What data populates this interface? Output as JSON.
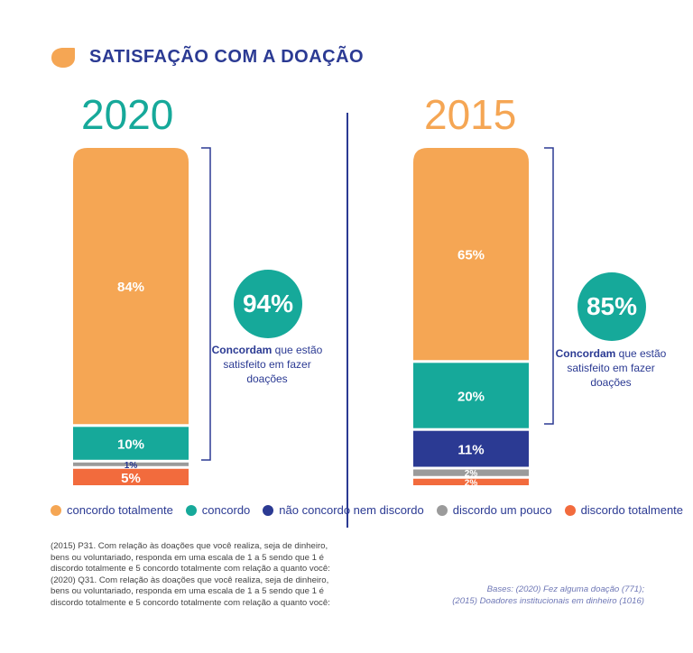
{
  "header": {
    "title": "SATISFAÇÃO COM A DOAÇÃO",
    "title_color": "#2b3a93",
    "dot_color": "#f5a654"
  },
  "colors": {
    "concordo_totalmente": "#f5a654",
    "concordo": "#16a99a",
    "nao_concordo_nem_discordo": "#2b3a93",
    "discordo_um_pouco": "#9b9b9b",
    "discordo_totalmente": "#f26b3d"
  },
  "chart_data": [
    {
      "type": "bar",
      "stacked": true,
      "title": "2020",
      "categories": [
        "2020"
      ],
      "series": [
        {
          "name": "concordo totalmente",
          "values": [
            84
          ],
          "label": "84%"
        },
        {
          "name": "concordo",
          "values": [
            10
          ],
          "label": "10%"
        },
        {
          "name": "não concordo nem discordo",
          "values": [
            0
          ],
          "label": ""
        },
        {
          "name": "discordo um pouco",
          "values": [
            1
          ],
          "label": "1%"
        },
        {
          "name": "discordo totalmente",
          "values": [
            5
          ],
          "label": "5%"
        }
      ],
      "summary": {
        "value": "94%",
        "caption_bold": "Concordam",
        "caption_rest": " que estão satisfeito em fazer doações"
      }
    },
    {
      "type": "bar",
      "stacked": true,
      "title": "2015",
      "categories": [
        "2015"
      ],
      "series": [
        {
          "name": "concordo totalmente",
          "values": [
            65
          ],
          "label": "65%"
        },
        {
          "name": "concordo",
          "values": [
            20
          ],
          "label": "20%"
        },
        {
          "name": "não concordo nem discordo",
          "values": [
            11
          ],
          "label": "11%"
        },
        {
          "name": "discordo um pouco",
          "values": [
            2
          ],
          "label": "2%"
        },
        {
          "name": "discordo totalmente",
          "values": [
            2
          ],
          "label": "2%"
        }
      ],
      "summary": {
        "value": "85%",
        "caption_bold": "Concordam",
        "caption_rest": " que estão satisfeito em fazer doações"
      }
    }
  ],
  "legend": [
    {
      "label": "concordo totalmente",
      "color": "#f5a654"
    },
    {
      "label": "concordo",
      "color": "#16a99a"
    },
    {
      "label": "não concordo nem discordo",
      "color": "#2b3a93"
    },
    {
      "label": "discordo um pouco",
      "color": "#9b9b9b"
    },
    {
      "label": "discordo totalmente",
      "color": "#f26b3d"
    }
  ],
  "note_lines": [
    "(2015) P31. Com relação às doações que você realiza, seja de dinheiro,",
    "bens ou voluntariado, responda em uma escala de 1 a 5 sendo que 1 é",
    "discordo totalmente e 5 concordo totalmente com relação a quanto você:",
    "(2020) Q31. Com relação às doações que você realiza, seja de dinheiro,",
    "bens ou voluntariado, responda em uma escala de 1 a 5 sendo que 1 é",
    "discordo totalmente e 5 concordo totalmente com relação a quanto você:"
  ],
  "bases_lines": [
    "Bases: (2020) Fez alguma doação (771);",
    "(2015) Doadores institucionais em dinheiro (1016)"
  ]
}
